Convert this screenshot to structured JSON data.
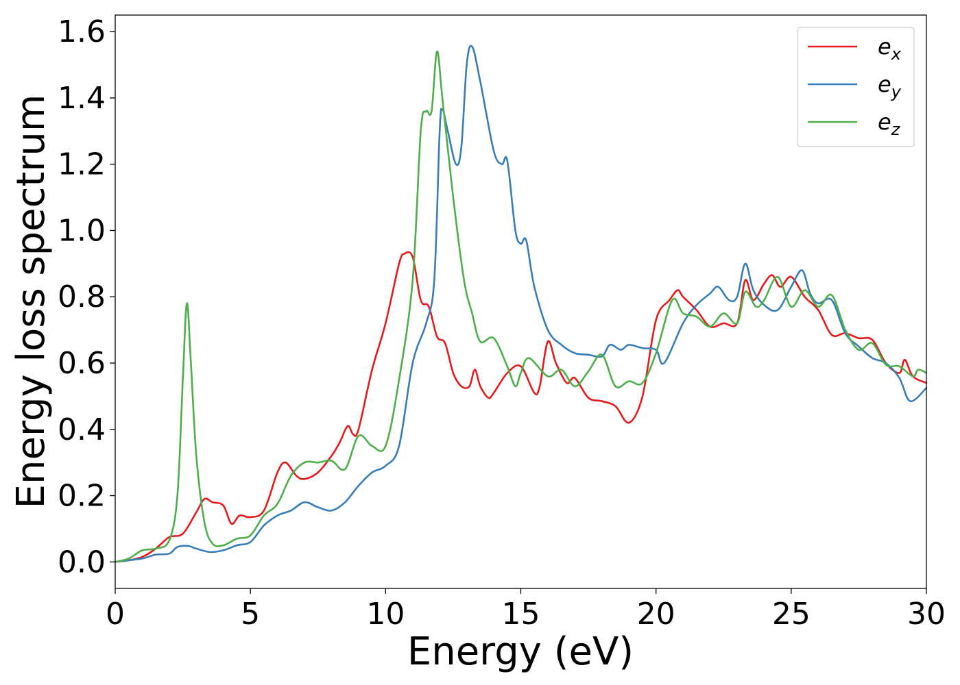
{
  "chart_data": {
    "type": "line",
    "title": "",
    "xlabel": "Energy (eV)",
    "ylabel": "Energy loss spectrum",
    "xlim": [
      0,
      30
    ],
    "ylim": [
      -0.08,
      1.65
    ],
    "xticks": [
      0,
      5,
      10,
      15,
      20,
      25,
      30
    ],
    "yticks": [
      0.0,
      0.2,
      0.4,
      0.6,
      0.8,
      1.0,
      1.2,
      1.4,
      1.6
    ],
    "xtick_labels": [
      "0",
      "5",
      "10",
      "15",
      "20",
      "25",
      "30"
    ],
    "ytick_labels": [
      "0.0",
      "0.2",
      "0.4",
      "0.6",
      "0.8",
      "1.0",
      "1.2",
      "1.4",
      "1.6"
    ],
    "grid": false,
    "legend": {
      "placement": "top-right"
    },
    "series": [
      {
        "name": "e",
        "subscript": "x",
        "color": "#e41a1c",
        "points": [
          [
            0,
            0
          ],
          [
            0.5,
            0.005
          ],
          [
            1,
            0.015
          ],
          [
            1.5,
            0.04
          ],
          [
            2,
            0.075
          ],
          [
            2.5,
            0.085
          ],
          [
            3,
            0.15
          ],
          [
            3.3,
            0.19
          ],
          [
            3.6,
            0.18
          ],
          [
            4,
            0.17
          ],
          [
            4.3,
            0.115
          ],
          [
            4.6,
            0.14
          ],
          [
            5,
            0.135
          ],
          [
            5.5,
            0.155
          ],
          [
            6,
            0.27
          ],
          [
            6.3,
            0.3
          ],
          [
            6.7,
            0.26
          ],
          [
            7,
            0.25
          ],
          [
            7.5,
            0.27
          ],
          [
            8,
            0.32
          ],
          [
            8.3,
            0.36
          ],
          [
            8.6,
            0.41
          ],
          [
            8.8,
            0.385
          ],
          [
            9,
            0.4
          ],
          [
            9.5,
            0.58
          ],
          [
            10,
            0.72
          ],
          [
            10.5,
            0.9
          ],
          [
            10.7,
            0.93
          ],
          [
            11,
            0.92
          ],
          [
            11.3,
            0.79
          ],
          [
            11.6,
            0.77
          ],
          [
            11.9,
            0.68
          ],
          [
            12.2,
            0.66
          ],
          [
            12.5,
            0.57
          ],
          [
            12.8,
            0.53
          ],
          [
            13.1,
            0.53
          ],
          [
            13.3,
            0.58
          ],
          [
            13.5,
            0.53
          ],
          [
            13.8,
            0.495
          ],
          [
            14,
            0.51
          ],
          [
            14.5,
            0.57
          ],
          [
            15,
            0.59
          ],
          [
            15.5,
            0.51
          ],
          [
            15.7,
            0.53
          ],
          [
            16,
            0.665
          ],
          [
            16.3,
            0.6
          ],
          [
            16.7,
            0.54
          ],
          [
            17,
            0.555
          ],
          [
            17.5,
            0.495
          ],
          [
            18,
            0.485
          ],
          [
            18.5,
            0.47
          ],
          [
            19,
            0.42
          ],
          [
            19.5,
            0.5
          ],
          [
            20,
            0.73
          ],
          [
            20.5,
            0.79
          ],
          [
            20.8,
            0.82
          ],
          [
            21,
            0.8
          ],
          [
            21.5,
            0.76
          ],
          [
            22,
            0.71
          ],
          [
            22.5,
            0.72
          ],
          [
            23,
            0.72
          ],
          [
            23.3,
            0.85
          ],
          [
            23.6,
            0.79
          ],
          [
            24,
            0.84
          ],
          [
            24.3,
            0.865
          ],
          [
            24.6,
            0.83
          ],
          [
            25,
            0.86
          ],
          [
            25.5,
            0.8
          ],
          [
            26,
            0.76
          ],
          [
            26.5,
            0.685
          ],
          [
            27,
            0.69
          ],
          [
            27.5,
            0.675
          ],
          [
            28,
            0.67
          ],
          [
            28.5,
            0.6
          ],
          [
            29,
            0.57
          ],
          [
            29.2,
            0.61
          ],
          [
            29.5,
            0.56
          ],
          [
            30,
            0.54
          ]
        ]
      },
      {
        "name": "e",
        "subscript": "y",
        "color": "#377eb8",
        "points": [
          [
            0,
            0
          ],
          [
            0.5,
            0.005
          ],
          [
            1,
            0.01
          ],
          [
            1.5,
            0.022
          ],
          [
            2,
            0.025
          ],
          [
            2.3,
            0.045
          ],
          [
            2.7,
            0.048
          ],
          [
            3,
            0.04
          ],
          [
            3.5,
            0.03
          ],
          [
            4,
            0.035
          ],
          [
            4.5,
            0.05
          ],
          [
            5,
            0.06
          ],
          [
            5.5,
            0.11
          ],
          [
            6,
            0.14
          ],
          [
            6.5,
            0.155
          ],
          [
            7,
            0.18
          ],
          [
            7.5,
            0.165
          ],
          [
            8,
            0.155
          ],
          [
            8.5,
            0.18
          ],
          [
            9,
            0.23
          ],
          [
            9.5,
            0.27
          ],
          [
            10,
            0.29
          ],
          [
            10.5,
            0.35
          ],
          [
            11,
            0.6
          ],
          [
            11.5,
            0.72
          ],
          [
            11.8,
            0.85
          ],
          [
            12,
            1.3
          ],
          [
            12.1,
            1.365
          ],
          [
            12.3,
            1.3
          ],
          [
            12.6,
            1.2
          ],
          [
            12.8,
            1.25
          ],
          [
            13,
            1.5
          ],
          [
            13.2,
            1.555
          ],
          [
            13.5,
            1.45
          ],
          [
            14,
            1.24
          ],
          [
            14.3,
            1.2
          ],
          [
            14.5,
            1.21
          ],
          [
            14.8,
            1.0
          ],
          [
            15,
            0.96
          ],
          [
            15.2,
            0.97
          ],
          [
            15.5,
            0.83
          ],
          [
            16,
            0.7
          ],
          [
            16.5,
            0.655
          ],
          [
            17,
            0.63
          ],
          [
            17.5,
            0.625
          ],
          [
            18,
            0.62
          ],
          [
            18.3,
            0.655
          ],
          [
            18.7,
            0.64
          ],
          [
            19,
            0.655
          ],
          [
            19.5,
            0.645
          ],
          [
            20,
            0.64
          ],
          [
            20.3,
            0.6
          ],
          [
            21,
            0.72
          ],
          [
            21.5,
            0.775
          ],
          [
            22,
            0.81
          ],
          [
            22.3,
            0.83
          ],
          [
            22.7,
            0.79
          ],
          [
            23,
            0.8
          ],
          [
            23.3,
            0.9
          ],
          [
            23.6,
            0.82
          ],
          [
            24,
            0.775
          ],
          [
            24.5,
            0.76
          ],
          [
            25,
            0.83
          ],
          [
            25.4,
            0.88
          ],
          [
            25.7,
            0.81
          ],
          [
            26,
            0.78
          ],
          [
            26.5,
            0.79
          ],
          [
            27,
            0.69
          ],
          [
            27.5,
            0.65
          ],
          [
            28,
            0.615
          ],
          [
            28.5,
            0.6
          ],
          [
            29,
            0.555
          ],
          [
            29.4,
            0.485
          ],
          [
            30,
            0.525
          ]
        ]
      },
      {
        "name": "e",
        "subscript": "z",
        "color": "#4daf4a",
        "points": [
          [
            0,
            0
          ],
          [
            0.5,
            0.01
          ],
          [
            1,
            0.035
          ],
          [
            1.5,
            0.04
          ],
          [
            2,
            0.065
          ],
          [
            2.3,
            0.2
          ],
          [
            2.5,
            0.55
          ],
          [
            2.65,
            0.78
          ],
          [
            2.8,
            0.6
          ],
          [
            3,
            0.32
          ],
          [
            3.3,
            0.12
          ],
          [
            3.6,
            0.055
          ],
          [
            4,
            0.05
          ],
          [
            4.5,
            0.07
          ],
          [
            5,
            0.08
          ],
          [
            5.5,
            0.14
          ],
          [
            6,
            0.175
          ],
          [
            6.5,
            0.26
          ],
          [
            7,
            0.3
          ],
          [
            7.5,
            0.3
          ],
          [
            8,
            0.305
          ],
          [
            8.5,
            0.28
          ],
          [
            9,
            0.38
          ],
          [
            9.5,
            0.35
          ],
          [
            10,
            0.35
          ],
          [
            10.5,
            0.55
          ],
          [
            11,
            0.85
          ],
          [
            11.3,
            1.3
          ],
          [
            11.5,
            1.36
          ],
          [
            11.7,
            1.36
          ],
          [
            11.9,
            1.54
          ],
          [
            12.1,
            1.4
          ],
          [
            12.5,
            1.1
          ],
          [
            12.9,
            0.85
          ],
          [
            13.2,
            0.75
          ],
          [
            13.5,
            0.665
          ],
          [
            14,
            0.675
          ],
          [
            14.5,
            0.59
          ],
          [
            14.8,
            0.53
          ],
          [
            15,
            0.57
          ],
          [
            15.3,
            0.615
          ],
          [
            16,
            0.56
          ],
          [
            16.5,
            0.58
          ],
          [
            17,
            0.53
          ],
          [
            17.5,
            0.575
          ],
          [
            18,
            0.625
          ],
          [
            18.5,
            0.53
          ],
          [
            19,
            0.545
          ],
          [
            19.5,
            0.54
          ],
          [
            20,
            0.63
          ],
          [
            20.6,
            0.79
          ],
          [
            21,
            0.75
          ],
          [
            21.5,
            0.74
          ],
          [
            22,
            0.71
          ],
          [
            22.5,
            0.75
          ],
          [
            23,
            0.72
          ],
          [
            23.3,
            0.815
          ],
          [
            23.7,
            0.77
          ],
          [
            24,
            0.79
          ],
          [
            24.5,
            0.86
          ],
          [
            25,
            0.77
          ],
          [
            25.5,
            0.82
          ],
          [
            26,
            0.77
          ],
          [
            26.5,
            0.805
          ],
          [
            27,
            0.7
          ],
          [
            27.5,
            0.64
          ],
          [
            28,
            0.66
          ],
          [
            28.5,
            0.595
          ],
          [
            29,
            0.59
          ],
          [
            29.5,
            0.56
          ],
          [
            29.7,
            0.58
          ],
          [
            30,
            0.57
          ]
        ]
      }
    ]
  }
}
